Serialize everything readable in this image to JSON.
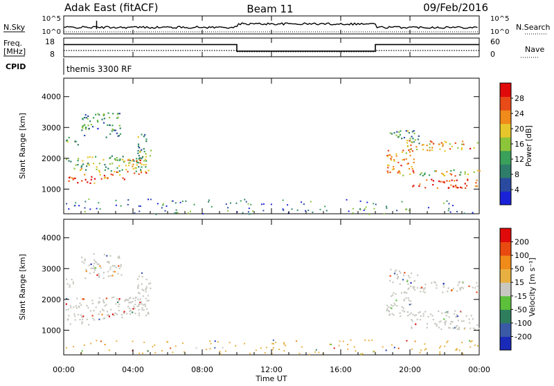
{
  "header": {
    "station": "Adak East (fitACF)",
    "beam": "Beam 11",
    "date": "09/Feb/2016"
  },
  "param_labels": {
    "nsky": "N.Sky",
    "nsearch": "N.Search",
    "freq_line1": "Freq.",
    "freq_line2": "[MHz]",
    "nave": "Nave",
    "cpid": "CPID",
    "cpid_value": "themis 3300 RF"
  },
  "colorbars": {
    "power": {
      "label": "Power [dB]",
      "ticks": [
        "4",
        "8",
        "12",
        "16",
        "20",
        "24",
        "28"
      ],
      "colors": [
        "#1a22d8",
        "#2a4aa0",
        "#2e7d6a",
        "#3aa05a",
        "#8cc43a",
        "#e6c62a",
        "#f08a1a",
        "#e84a18",
        "#e00a0a"
      ]
    },
    "velocity": {
      "label": "Velocity [m s⁻¹]",
      "ticks": [
        "200",
        "100",
        "50",
        "15",
        "-15",
        "-50",
        "-100",
        "-200"
      ],
      "colors": [
        "#1a2ab8",
        "#3a5aa8",
        "#2e7e5e",
        "#5cc03a",
        "#c8c8c0",
        "#e8b040",
        "#f08a18",
        "#e84a10",
        "#e00a0a"
      ]
    }
  },
  "chart_data": {
    "type": "heatmap",
    "xlabel": "Time UT",
    "x_ticks": [
      "00:00",
      "04:00",
      "08:00",
      "12:00",
      "16:00",
      "20:00",
      "00:00"
    ],
    "xlim_hours": [
      0,
      24
    ],
    "nsky_ticks": [
      "10^5",
      "10^0"
    ],
    "nsearch_ticks": [
      "10^5",
      "10^0"
    ],
    "freq_ticks": [
      "18",
      "8"
    ],
    "nave_ticks": [
      "60",
      "0"
    ],
    "freq_ylim": [
      8,
      18
    ],
    "freq_segments": [
      {
        "start": 0,
        "end": 10,
        "value": 14.5
      },
      {
        "start": 10,
        "end": 18,
        "value": 11.0
      },
      {
        "start": 18,
        "end": 24,
        "value": 14.5
      }
    ],
    "nave_segments": [
      {
        "start": 0,
        "end": 10,
        "value": 20
      },
      {
        "start": 10,
        "end": 18,
        "value": 16
      },
      {
        "start": 18,
        "end": 24,
        "value": 20
      }
    ],
    "range_panels": [
      {
        "name": "power",
        "ylabel": "Slant Range [km]",
        "y_ticks": [
          "1000",
          "2000",
          "3000",
          "4000"
        ],
        "ylim": [
          200,
          4600
        ],
        "scatter_regions": [
          {
            "t0": 0.1,
            "t1": 1.8,
            "r0": 1200,
            "r1": 1500,
            "intensity": 0.9
          },
          {
            "t0": 1.8,
            "t1": 3.5,
            "r0": 1300,
            "r1": 1600,
            "intensity": 0.8
          },
          {
            "t0": 3.5,
            "t1": 4.9,
            "r0": 1500,
            "r1": 2000,
            "intensity": 0.7
          },
          {
            "t0": 0.1,
            "t1": 4.9,
            "r0": 1600,
            "r1": 2100,
            "intensity": 0.45
          },
          {
            "t0": 0.1,
            "t1": 0.8,
            "r0": 2400,
            "r1": 2750,
            "intensity": 0.4
          },
          {
            "t0": 1.0,
            "t1": 3.3,
            "r0": 2700,
            "r1": 3500,
            "intensity": 0.3
          },
          {
            "t0": 4.2,
            "t1": 5.0,
            "r0": 2000,
            "r1": 2900,
            "intensity": 0.4
          },
          {
            "t0": 18.6,
            "t1": 20.2,
            "r0": 1500,
            "r1": 2300,
            "intensity": 0.8
          },
          {
            "t0": 20.0,
            "t1": 24.0,
            "r0": 1050,
            "r1": 1350,
            "intensity": 0.95
          },
          {
            "t0": 19.3,
            "t1": 24.0,
            "r0": 1450,
            "r1": 1650,
            "intensity": 0.6
          },
          {
            "t0": 19.8,
            "t1": 24.0,
            "r0": 2250,
            "r1": 2600,
            "intensity": 0.7
          },
          {
            "t0": 18.8,
            "t1": 20.5,
            "r0": 2500,
            "r1": 3000,
            "intensity": 0.35
          }
        ],
        "noise_band": {
          "r0": 200,
          "r1": 700
        }
      },
      {
        "name": "velocity",
        "ylabel": "Slant Range [km]",
        "y_ticks": [
          "1000",
          "2000",
          "3000",
          "4000"
        ],
        "ylim": [
          200,
          4600
        ],
        "scatter_regions": [
          {
            "t0": 0.1,
            "t1": 1.8,
            "r0": 1200,
            "r1": 1550,
            "intensity": 0.5
          },
          {
            "t0": 1.8,
            "t1": 3.5,
            "r0": 1300,
            "r1": 1650,
            "intensity": 0.5
          },
          {
            "t0": 3.5,
            "t1": 4.9,
            "r0": 1500,
            "r1": 2050,
            "intensity": 0.5
          },
          {
            "t0": 0.1,
            "t1": 4.9,
            "r0": 1650,
            "r1": 2100,
            "intensity": 0.5
          },
          {
            "t0": 0.1,
            "t1": 0.8,
            "r0": 2400,
            "r1": 2700,
            "intensity": 0.5
          },
          {
            "t0": 1.0,
            "t1": 3.3,
            "r0": 2700,
            "r1": 3500,
            "intensity": 0.5
          },
          {
            "t0": 4.2,
            "t1": 5.0,
            "r0": 2000,
            "r1": 2900,
            "intensity": 0.5
          },
          {
            "t0": 18.6,
            "t1": 20.2,
            "r0": 1500,
            "r1": 2300,
            "intensity": 0.5
          },
          {
            "t0": 20.0,
            "t1": 24.0,
            "r0": 1050,
            "r1": 1400,
            "intensity": 0.5
          },
          {
            "t0": 19.3,
            "t1": 24.0,
            "r0": 1450,
            "r1": 1650,
            "intensity": 0.5
          },
          {
            "t0": 19.8,
            "t1": 24.0,
            "r0": 2250,
            "r1": 2600,
            "intensity": 0.5
          },
          {
            "t0": 18.8,
            "t1": 20.5,
            "r0": 2500,
            "r1": 3000,
            "intensity": 0.5
          }
        ],
        "noise_band": {
          "r0": 200,
          "r1": 700
        }
      }
    ]
  }
}
